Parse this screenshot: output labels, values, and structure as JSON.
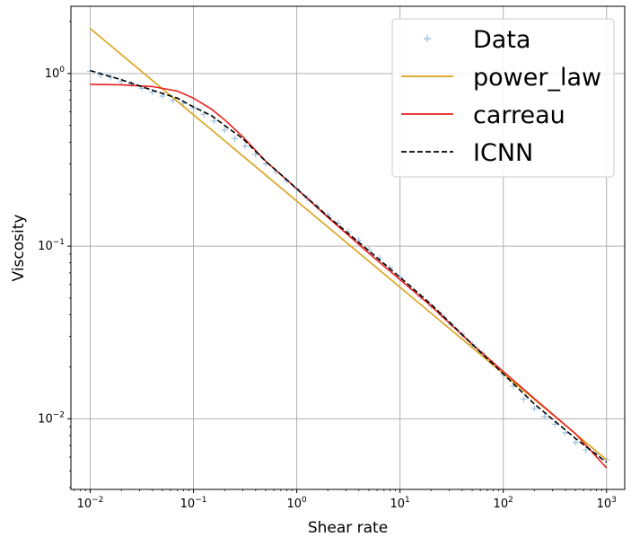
{
  "chart_data": {
    "type": "line",
    "xlabel": "Shear rate",
    "ylabel": "Viscosity",
    "xscale": "log",
    "yscale": "log",
    "xlim": [
      0.0065,
      1500
    ],
    "ylim": [
      0.0039,
      2.45
    ],
    "grid": true,
    "legend_position": "top-right",
    "x_ticks": [
      {
        "value": 0.01,
        "base": "10",
        "exp": "−2"
      },
      {
        "value": 0.1,
        "base": "10",
        "exp": "−1"
      },
      {
        "value": 1,
        "base": "10",
        "exp": "0"
      },
      {
        "value": 10,
        "base": "10",
        "exp": "1"
      },
      {
        "value": 100,
        "base": "10",
        "exp": "2"
      },
      {
        "value": 1000,
        "base": "10",
        "exp": "3"
      }
    ],
    "y_ticks": [
      {
        "value": 0.01,
        "base": "10",
        "exp": "−2"
      },
      {
        "value": 0.1,
        "base": "10",
        "exp": "−1"
      },
      {
        "value": 1,
        "base": "10",
        "exp": "0"
      }
    ],
    "series": [
      {
        "name": "Data",
        "kind": "scatter",
        "marker": "+",
        "color": "#9ec3df",
        "x": [
          0.01,
          0.0126,
          0.0158,
          0.02,
          0.0251,
          0.0316,
          0.0398,
          0.0501,
          0.0631,
          0.0794,
          0.1,
          0.126,
          0.158,
          0.2,
          0.251,
          0.316,
          0.398,
          0.501,
          0.631,
          0.794,
          1,
          1.26,
          1.58,
          2,
          2.51,
          3.16,
          3.98,
          5.01,
          6.31,
          7.94,
          10,
          12.6,
          15.8,
          20,
          25.1,
          31.6,
          39.8,
          50.1,
          63.1,
          79.4,
          100,
          126,
          158,
          200,
          251,
          316,
          398,
          501,
          631,
          794,
          1000
        ],
        "y": [
          1.03,
          0.98,
          0.95,
          0.9,
          0.87,
          0.82,
          0.78,
          0.74,
          0.7,
          0.67,
          0.63,
          0.58,
          0.53,
          0.47,
          0.42,
          0.38,
          0.34,
          0.3,
          0.27,
          0.24,
          0.215,
          0.19,
          0.17,
          0.152,
          0.136,
          0.121,
          0.108,
          0.095,
          0.085,
          0.075,
          0.066,
          0.058,
          0.051,
          0.045,
          0.04,
          0.035,
          0.031,
          0.027,
          0.024,
          0.021,
          0.018,
          0.0155,
          0.013,
          0.0115,
          0.0103,
          0.0093,
          0.0083,
          0.0073,
          0.0066,
          0.0062,
          0.0058
        ]
      },
      {
        "name": "power_law",
        "kind": "line",
        "color": "#dba118",
        "dash": "solid",
        "x": [
          0.01,
          1000
        ],
        "y": [
          1.82,
          0.0058
        ]
      },
      {
        "name": "carreau",
        "kind": "line",
        "color": "#e8201c",
        "dash": "solid",
        "x": [
          0.01,
          0.02,
          0.04,
          0.07,
          0.1,
          0.15,
          0.2,
          0.3,
          0.5,
          0.7,
          1,
          2,
          5,
          10,
          20,
          50,
          100,
          200,
          500,
          1000
        ],
        "y": [
          0.865,
          0.86,
          0.84,
          0.79,
          0.72,
          0.62,
          0.54,
          0.43,
          0.31,
          0.26,
          0.215,
          0.147,
          0.091,
          0.064,
          0.045,
          0.027,
          0.0188,
          0.0131,
          0.0082,
          0.0052
        ]
      },
      {
        "name": "ICNN",
        "kind": "line",
        "color": "#000000",
        "dash": "dashed",
        "x": [
          0.01,
          0.02,
          0.04,
          0.07,
          0.1,
          0.15,
          0.2,
          0.3,
          0.5,
          0.7,
          1,
          2,
          5,
          10,
          20,
          50,
          100,
          200,
          500,
          1000
        ],
        "y": [
          1.04,
          0.92,
          0.8,
          0.72,
          0.64,
          0.57,
          0.5,
          0.42,
          0.31,
          0.26,
          0.215,
          0.149,
          0.094,
          0.066,
          0.046,
          0.027,
          0.0182,
          0.0122,
          0.0077,
          0.0056
        ]
      }
    ]
  }
}
